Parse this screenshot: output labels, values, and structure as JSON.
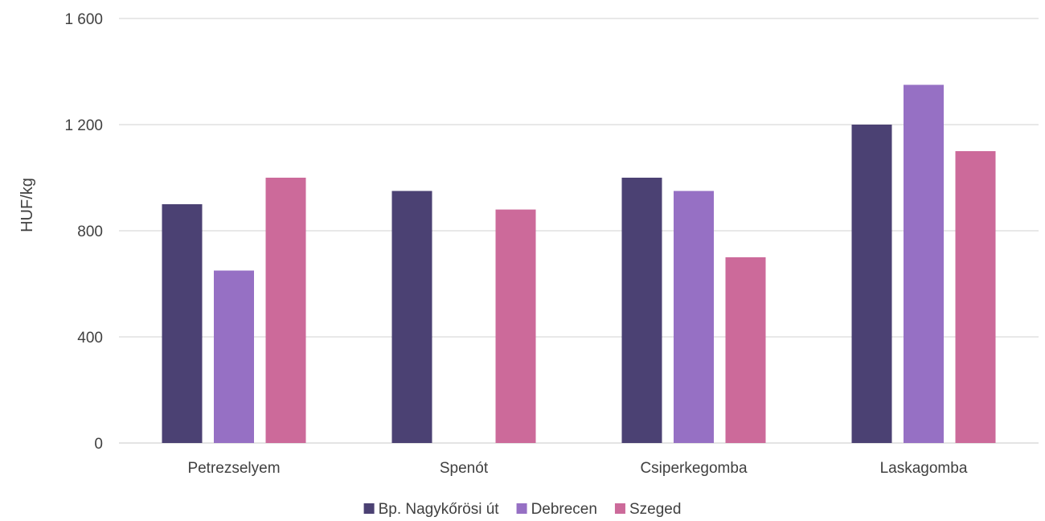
{
  "chart_data": {
    "type": "bar",
    "title": "",
    "xlabel": "",
    "ylabel": "HUF/kg",
    "ylim": [
      0,
      1600
    ],
    "yticks": [
      0,
      400,
      800,
      1200,
      1600
    ],
    "ytick_labels": [
      "0",
      "400",
      "800",
      "1 200",
      "1 600"
    ],
    "grid": true,
    "legend_position": "bottom",
    "categories": [
      "Petrezselyem",
      "Spenót",
      "Csiperkegomba",
      "Laskagomba"
    ],
    "series": [
      {
        "name": "Bp. Nagykőrösi út",
        "color": "#4b4173",
        "values": [
          900,
          950,
          1000,
          1200
        ]
      },
      {
        "name": "Debrecen",
        "color": "#9670c4",
        "values": [
          650,
          null,
          950,
          1350
        ]
      },
      {
        "name": "Szeged",
        "color": "#cc6a9a",
        "values": [
          1000,
          880,
          700,
          1100
        ]
      }
    ]
  }
}
